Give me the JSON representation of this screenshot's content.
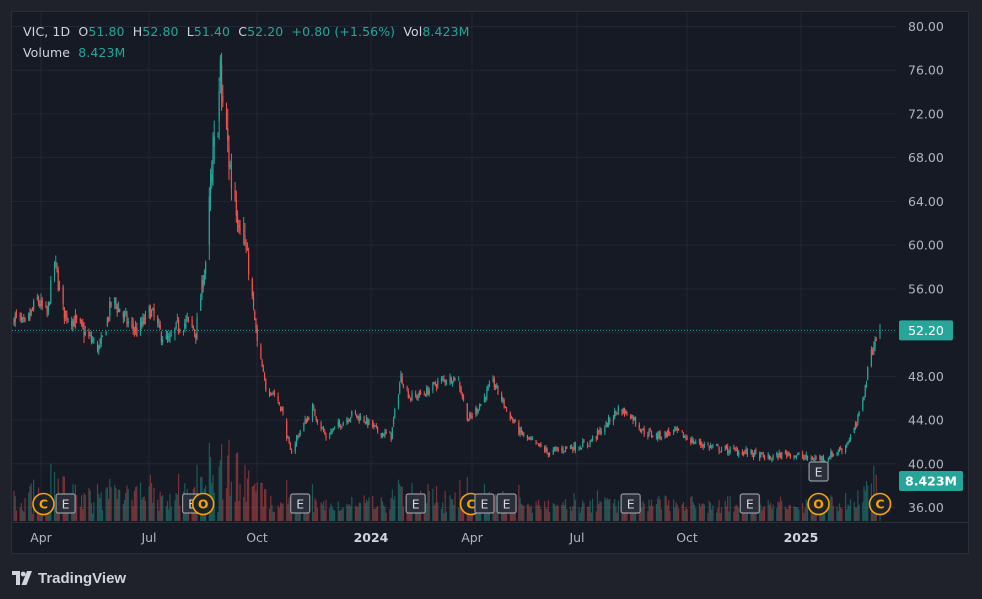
{
  "legend": {
    "symbol": "VIC, 1D",
    "o_label": "O",
    "o_value": "51.80",
    "h_label": "H",
    "h_value": "52.80",
    "l_label": "L",
    "l_value": "51.40",
    "c_label": "C",
    "c_value": "52.20",
    "change": "+0.80 (+1.56%)",
    "vol_label": "Vol",
    "vol_value": "8.423M",
    "volume_label": "Volume",
    "volume_value": "8.423M"
  },
  "price_badge": "52.20",
  "volume_badge": "8.423M",
  "brand": "TradingView",
  "colors": {
    "up": "#26a69a",
    "down": "#ef5350",
    "background": "#161a25",
    "grid": "#232733",
    "axis_text": "#b2b5be",
    "event_marker": "#f7a600"
  },
  "chart_data": {
    "type": "candlestick",
    "y_ticks": [
      "80.00",
      "76.00",
      "72.00",
      "68.00",
      "64.00",
      "60.00",
      "56.00",
      "52.00",
      "48.00",
      "44.00",
      "40.00",
      "36.00"
    ],
    "x_ticks": [
      {
        "label": "Apr",
        "bold": false
      },
      {
        "label": "Jul",
        "bold": false
      },
      {
        "label": "Oct",
        "bold": false
      },
      {
        "label": "2024",
        "bold": true
      },
      {
        "label": "Apr",
        "bold": false
      },
      {
        "label": "Jul",
        "bold": false
      },
      {
        "label": "Oct",
        "bold": false
      },
      {
        "label": "2025",
        "bold": true
      }
    ],
    "ylim": [
      35,
      81
    ],
    "last_close": 52.2,
    "price_path": [
      [
        "2023-03-01",
        53.5
      ],
      [
        "2023-03-10",
        52.5
      ],
      [
        "2023-03-20",
        55.0
      ],
      [
        "2023-03-28",
        53.5
      ],
      [
        "2023-04-03",
        58.5
      ],
      [
        "2023-04-10",
        54.0
      ],
      [
        "2023-04-20",
        53.0
      ],
      [
        "2023-05-01",
        51.5
      ],
      [
        "2023-05-10",
        50.5
      ],
      [
        "2023-05-20",
        55.0
      ],
      [
        "2023-06-01",
        53.0
      ],
      [
        "2023-06-10",
        52.0
      ],
      [
        "2023-06-20",
        54.0
      ],
      [
        "2023-06-28",
        52.0
      ],
      [
        "2023-07-05",
        51.0
      ],
      [
        "2023-07-12",
        52.5
      ],
      [
        "2023-07-20",
        53.0
      ],
      [
        "2023-07-27",
        52.0
      ],
      [
        "2023-08-04",
        58.5
      ],
      [
        "2023-08-10",
        67.0
      ],
      [
        "2023-08-16",
        75.0
      ],
      [
        "2023-08-20",
        71.0
      ],
      [
        "2023-08-25",
        66.0
      ],
      [
        "2023-09-01",
        63.0
      ],
      [
        "2023-09-08",
        58.0
      ],
      [
        "2023-09-15",
        51.0
      ],
      [
        "2023-09-22",
        47.0
      ],
      [
        "2023-09-29",
        46.5
      ],
      [
        "2023-10-05",
        45.0
      ],
      [
        "2023-10-12",
        41.0
      ],
      [
        "2023-10-20",
        43.0
      ],
      [
        "2023-10-30",
        45.0
      ],
      [
        "2023-11-10",
        42.5
      ],
      [
        "2023-11-20",
        43.5
      ],
      [
        "2023-12-01",
        44.5
      ],
      [
        "2023-12-12",
        44.0
      ],
      [
        "2023-12-22",
        43.0
      ],
      [
        "2024-01-02",
        42.5
      ],
      [
        "2024-01-10",
        48.0
      ],
      [
        "2024-01-18",
        46.0
      ],
      [
        "2024-01-30",
        46.5
      ],
      [
        "2024-02-10",
        47.5
      ],
      [
        "2024-02-25",
        48.0
      ],
      [
        "2024-03-05",
        44.0
      ],
      [
        "2024-03-15",
        45.5
      ],
      [
        "2024-03-25",
        47.5
      ],
      [
        "2024-04-05",
        45.0
      ],
      [
        "2024-04-15",
        43.0
      ],
      [
        "2024-04-25",
        42.0
      ],
      [
        "2024-05-10",
        41.0
      ],
      [
        "2024-05-25",
        41.5
      ],
      [
        "2024-06-10",
        41.8
      ],
      [
        "2024-06-25",
        43.5
      ],
      [
        "2024-07-05",
        45.0
      ],
      [
        "2024-07-15",
        44.5
      ],
      [
        "2024-07-25",
        43.0
      ],
      [
        "2024-08-05",
        42.5
      ],
      [
        "2024-08-20",
        43.0
      ],
      [
        "2024-09-05",
        42.0
      ],
      [
        "2024-09-20",
        41.5
      ],
      [
        "2024-10-05",
        41.2
      ],
      [
        "2024-10-20",
        41.0
      ],
      [
        "2024-11-05",
        40.5
      ],
      [
        "2024-11-20",
        41.0
      ],
      [
        "2024-12-05",
        40.5
      ],
      [
        "2024-12-20",
        40.5
      ],
      [
        "2025-01-05",
        41.5
      ],
      [
        "2025-01-15",
        43.5
      ],
      [
        "2025-01-22",
        47.0
      ],
      [
        "2025-01-27",
        50.5
      ],
      [
        "2025-02-03",
        52.2
      ]
    ],
    "event_markers": [
      {
        "label": "C",
        "date": "2023-03-25"
      },
      {
        "label": "E",
        "date": "2023-04-12"
      },
      {
        "label": "E",
        "date": "2023-07-24"
      },
      {
        "label": "O",
        "date": "2023-08-02"
      },
      {
        "label": "E",
        "date": "2023-10-20"
      },
      {
        "label": "E",
        "date": "2024-01-22"
      },
      {
        "label": "C",
        "date": "2024-03-07"
      },
      {
        "label": "E",
        "date": "2024-03-18"
      },
      {
        "label": "E",
        "date": "2024-04-05"
      },
      {
        "label": "E",
        "date": "2024-07-15"
      },
      {
        "label": "E",
        "date": "2024-10-20"
      },
      {
        "label": "E",
        "date": "2024-12-15",
        "elevated": true
      },
      {
        "label": "O",
        "date": "2024-12-15"
      },
      {
        "label": "C",
        "date": "2025-02-03"
      }
    ]
  }
}
